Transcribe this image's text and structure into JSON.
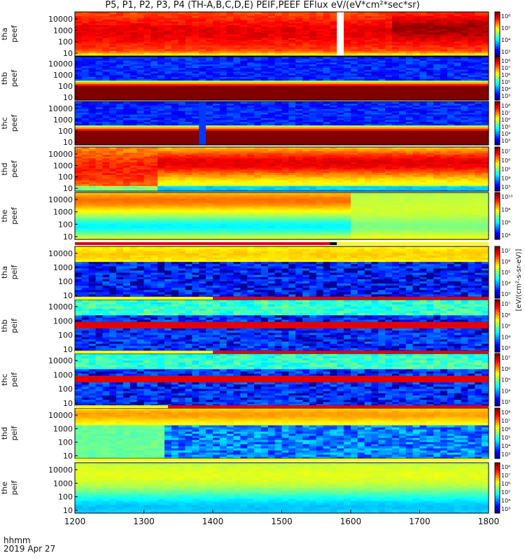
{
  "title": "P5, P1, P2, P3, P4 (TH-A,B,C,D,E) PEIF,PEEF EFlux eV/(eV*cm²*sec*sr)",
  "time_labels": {
    "format": "hhmm",
    "date": "2019 Apr 27"
  },
  "chart_data": {
    "type": "heatmap",
    "x_ticks": [
      "1200",
      "1300",
      "1400",
      "1500",
      "1600",
      "1700",
      "1800"
    ],
    "x_range": [
      1200,
      1800
    ],
    "y_scale": "log",
    "y_unit": "eV",
    "colorbar_label": "[eV/(cm²-s-sr-eV)]",
    "panels": [
      {
        "id": "tha-peef",
        "label": [
          "tha",
          "peef"
        ],
        "yticks": [
          "10000",
          "1000",
          "100",
          "10"
        ],
        "cbar": [
          "10⁶",
          "10⁵",
          "10⁴",
          "10³"
        ],
        "regime": "electron-hot",
        "gap": [
          1580,
          1595
        ]
      },
      {
        "id": "thb-peef",
        "label": [
          "thb",
          "peef"
        ],
        "yticks": [
          "10000",
          "1000",
          "100",
          "10"
        ],
        "cbar": [
          "10⁸",
          "10⁷",
          "10⁶",
          "10⁵",
          "10⁴",
          "10³"
        ],
        "regime": "electron-sheath",
        "switch": 1380
      },
      {
        "id": "thc-peef",
        "label": [
          "thc",
          "peef"
        ],
        "yticks": [
          "10000",
          "1000",
          "100",
          "10"
        ],
        "cbar": [
          "10⁸",
          "10⁷",
          "10⁶",
          "10⁵",
          "10⁴",
          "10³"
        ],
        "regime": "electron-sheath",
        "switch": 1385
      },
      {
        "id": "thd-peef",
        "label": [
          "thd",
          "peef"
        ],
        "yticks": [
          "10000",
          "1000",
          "100",
          "10"
        ],
        "cbar": [
          "10⁷",
          "10⁶",
          "10⁵",
          "10⁴",
          "10³"
        ],
        "regime": "electron-mixed"
      },
      {
        "id": "the-peef",
        "label": [
          "the",
          "peef"
        ],
        "yticks": [
          "10000",
          "1000",
          "100",
          "10"
        ],
        "cbar": [
          "10¹⁰",
          "10⁸",
          "10⁶",
          "10⁴"
        ],
        "regime": "electron-smooth"
      },
      {
        "id": "tha-peif",
        "label": [
          "tha",
          "peif"
        ],
        "yticks": [
          "10000",
          "1000",
          "100",
          "10"
        ],
        "cbar": [
          "10⁷",
          "10⁶",
          "10⁵",
          "10⁴",
          "10³"
        ],
        "regime": "ion-noisy"
      },
      {
        "id": "thb-peif",
        "label": [
          "thb",
          "peif"
        ],
        "yticks": [
          "10000",
          "1000",
          "100",
          "10"
        ],
        "cbar": [
          "10⁷",
          "10⁶",
          "10⁵",
          "10⁴",
          "10³"
        ],
        "regime": "ion-band"
      },
      {
        "id": "thc-peif",
        "label": [
          "thc",
          "peif"
        ],
        "yticks": [
          "10000",
          "1000",
          "100",
          "10"
        ],
        "cbar": [
          "10⁷",
          "10⁶",
          "10⁵",
          "10⁴",
          "10³"
        ],
        "regime": "ion-band"
      },
      {
        "id": "thd-peif",
        "label": [
          "thd",
          "peif"
        ],
        "yticks": [
          "10000",
          "1000",
          "100",
          "10"
        ],
        "cbar": [
          "10⁸",
          "10⁷",
          "10⁶",
          "10⁵",
          "10⁴",
          "10³"
        ],
        "regime": "ion-noisy-green"
      },
      {
        "id": "the-peif",
        "label": [
          "the",
          "peif"
        ],
        "yticks": [
          "10000",
          "1000",
          "100",
          "10"
        ],
        "cbar": [
          "10⁸",
          "10⁷",
          "10⁶",
          "10⁵",
          "10⁴",
          "10³"
        ],
        "regime": "ion-smooth"
      }
    ],
    "mode_bars": [
      {
        "after_panel": "the-peef",
        "segments": [
          {
            "from": 1200,
            "to": 1570,
            "color": "#e00000"
          },
          {
            "from": 1570,
            "to": 1580,
            "color": "#000000"
          },
          {
            "from": 1580,
            "to": 1800,
            "color": "#ffff00"
          }
        ]
      },
      {
        "after_panel": "tha-peif",
        "segments": [
          {
            "from": 1200,
            "to": 1400,
            "color": "#ffff00"
          },
          {
            "from": 1400,
            "to": 1800,
            "color": "#e00000"
          }
        ]
      },
      {
        "after_panel": "thb-peif",
        "segments": [
          {
            "from": 1200,
            "to": 1400,
            "color": "#ffff00"
          },
          {
            "from": 1400,
            "to": 1800,
            "color": "#e00000"
          }
        ]
      },
      {
        "after_panel": "thc-peif",
        "segments": [
          {
            "from": 1200,
            "to": 1335,
            "color": "#ffff00"
          },
          {
            "from": 1335,
            "to": 1800,
            "color": "#e00000"
          }
        ]
      },
      {
        "after_panel": "thd-peif",
        "segments": [
          {
            "from": 1200,
            "to": 1800,
            "color": "#ffff00"
          }
        ]
      }
    ]
  }
}
